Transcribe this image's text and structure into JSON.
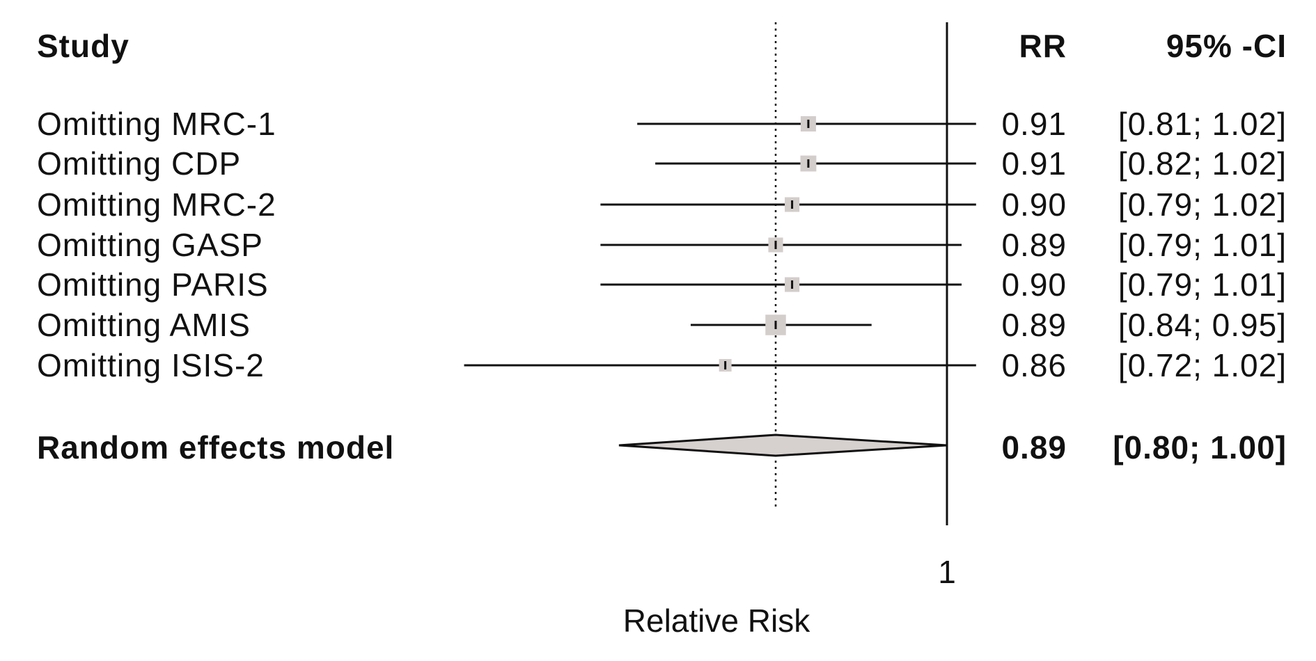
{
  "headers": {
    "study": "Study",
    "rr": "RR",
    "ci": "95% -CI"
  },
  "axis": {
    "xlabel": "Relative Risk",
    "tick_labels": [
      "1"
    ]
  },
  "colors": {
    "box": "#d3cdcb",
    "diamond": "#d6d1cf",
    "line": "#111111"
  },
  "chart_data": {
    "type": "forest",
    "title": "",
    "xlabel": "Relative Risk",
    "reference_line": 1,
    "pooled_dotted_line": 0.89,
    "studies": [
      {
        "label": "Omitting MRC-1",
        "rr": 0.91,
        "lower": 0.81,
        "upper": 1.02,
        "rr_text": "0.91",
        "ci_text": "[0.81; 1.02]",
        "weight": 1.0
      },
      {
        "label": "Omitting CDP",
        "rr": 0.91,
        "lower": 0.82,
        "upper": 1.02,
        "rr_text": "0.91",
        "ci_text": "[0.82; 1.02]",
        "weight": 1.1
      },
      {
        "label": "Omitting MRC-2",
        "rr": 0.9,
        "lower": 0.79,
        "upper": 1.02,
        "rr_text": "0.90",
        "ci_text": "[0.79; 1.02]",
        "weight": 0.9
      },
      {
        "label": "Omitting GASP",
        "rr": 0.89,
        "lower": 0.79,
        "upper": 1.01,
        "rr_text": "0.89",
        "ci_text": "[0.79; 1.01]",
        "weight": 0.9
      },
      {
        "label": "Omitting PARIS",
        "rr": 0.9,
        "lower": 0.79,
        "upper": 1.01,
        "rr_text": "0.90",
        "ci_text": "[0.79; 1.01]",
        "weight": 0.9
      },
      {
        "label": "Omitting AMIS",
        "rr": 0.89,
        "lower": 0.84,
        "upper": 0.95,
        "rr_text": "0.89",
        "ci_text": "[0.84; 0.95]",
        "weight": 2.0
      },
      {
        "label": "Omitting ISIS-2",
        "rr": 0.86,
        "lower": 0.72,
        "upper": 1.02,
        "rr_text": "0.86",
        "ci_text": "[0.72; 1.02]",
        "weight": 0.6
      }
    ],
    "pooled": {
      "label": "Random effects model",
      "rr": 0.89,
      "lower": 0.8,
      "upper": 1.0,
      "rr_text": "0.89",
      "ci_text": "[0.80; 1.00]"
    }
  }
}
